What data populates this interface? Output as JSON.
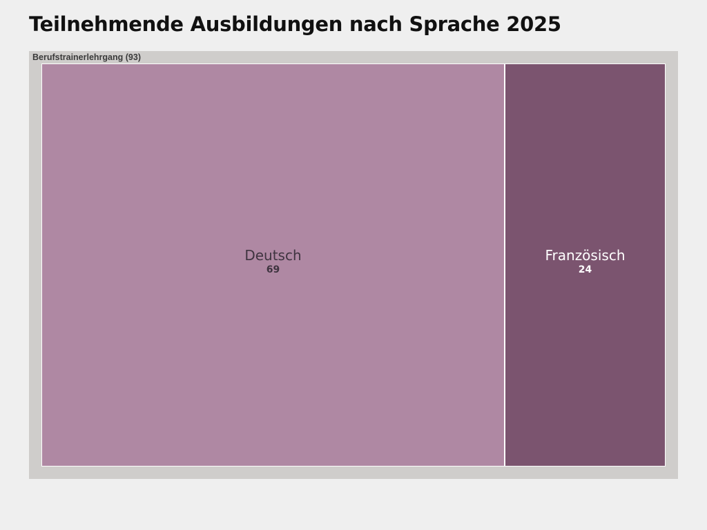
{
  "title": "Teilnehmende Ausbildungen nach Sprache 2025",
  "chart_data": {
    "type": "treemap",
    "title": "Teilnehmende Ausbildungen nach Sprache 2025",
    "group": {
      "name": "Berufstrainerlehrgang",
      "label": "Berufstrainerlehrgang (93)",
      "total": 93
    },
    "categories": [
      "Deutsch",
      "Französisch"
    ],
    "values": [
      69,
      24
    ],
    "colors": [
      "#af88a3",
      "#7b546f"
    ],
    "text_colors": [
      "#3f3440",
      "#ffffff"
    ]
  }
}
